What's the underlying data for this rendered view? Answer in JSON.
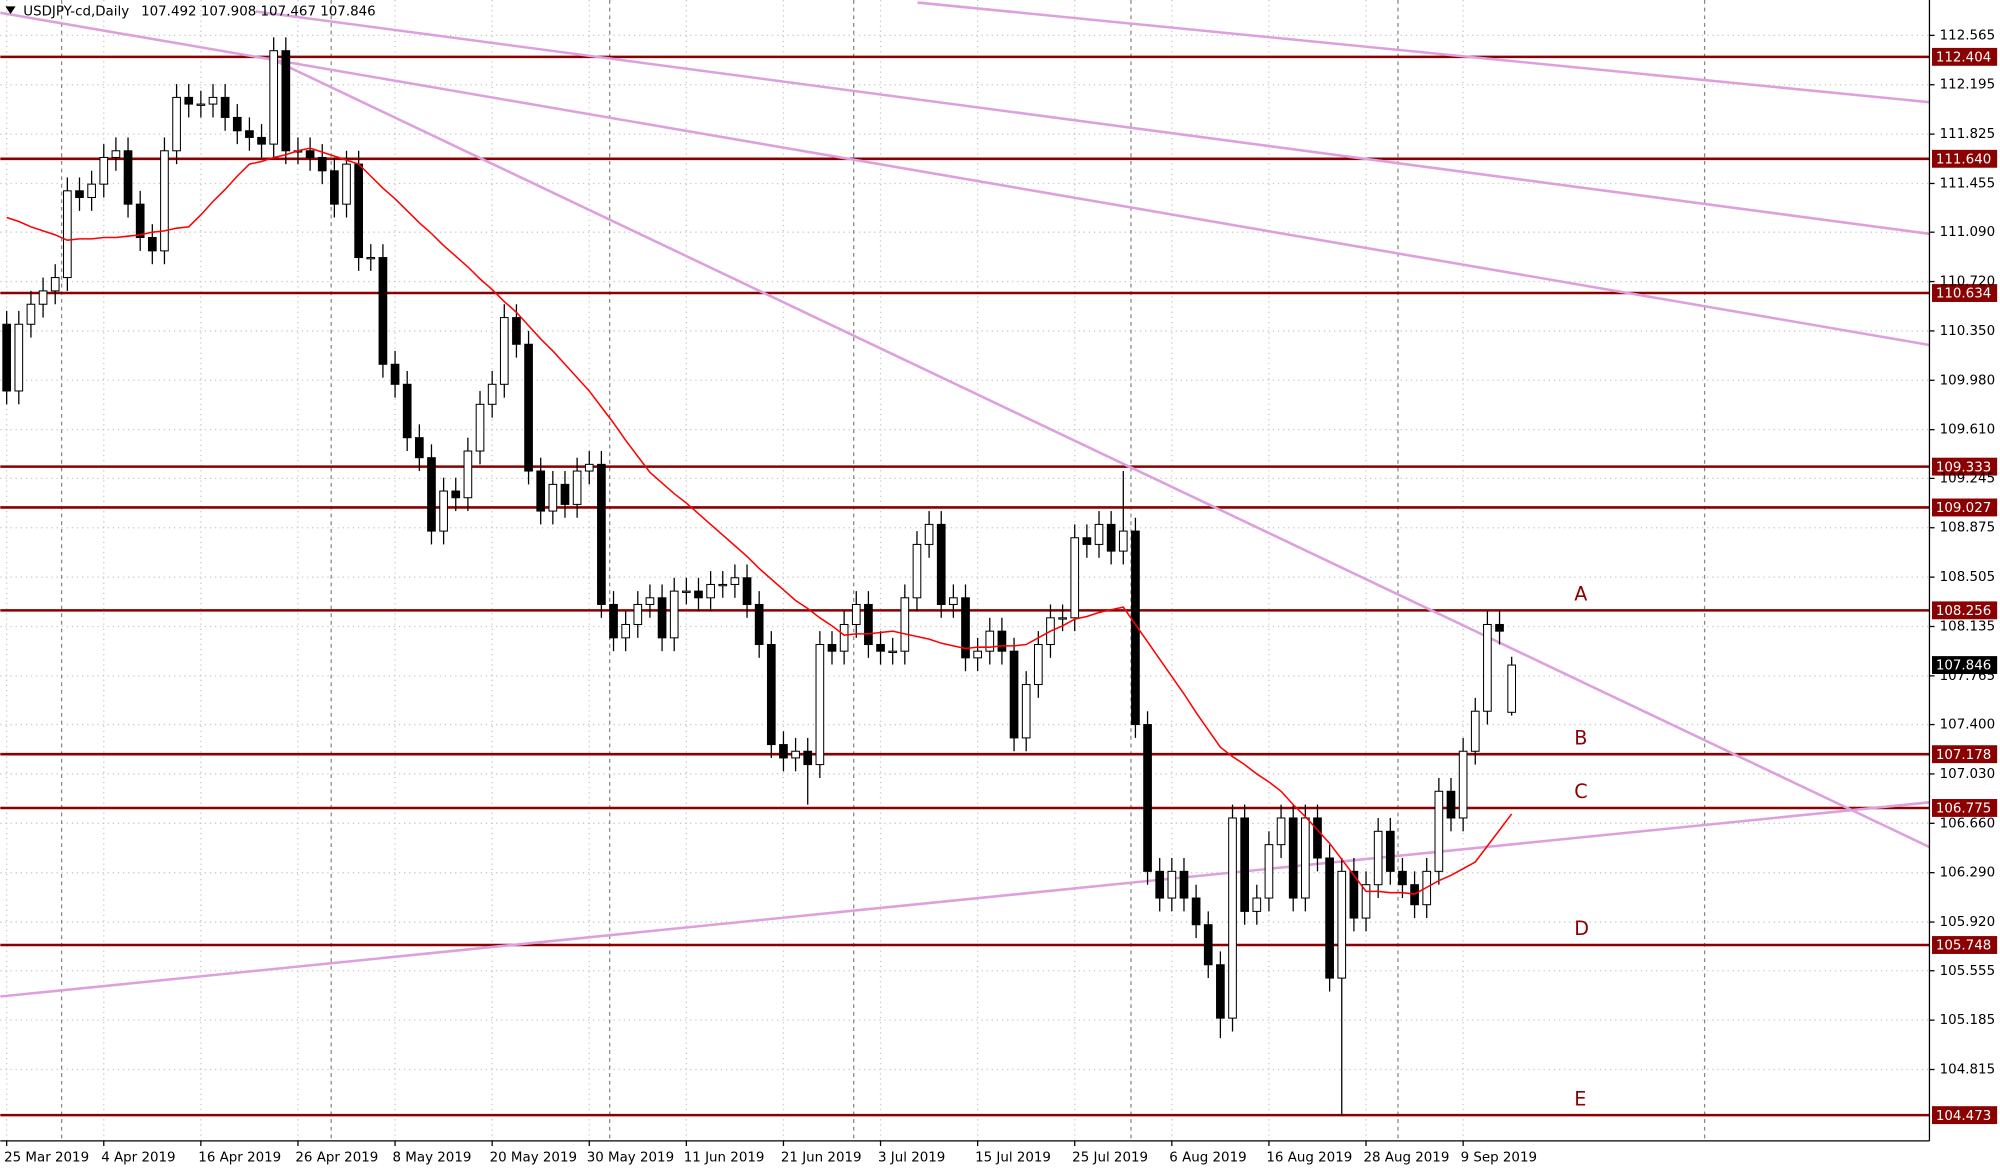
{
  "chart_data": {
    "type": "candlestick",
    "symbol": "USDJPY-cd,Daily",
    "categories": [
      "25 Mar 2019",
      null,
      null,
      null,
      null,
      null,
      null,
      null,
      "4 Apr 2019",
      null,
      null,
      null,
      null,
      null,
      null,
      null,
      "16 Apr 2019",
      null,
      null,
      null,
      null,
      null,
      null,
      null,
      "26 Apr 2019",
      null,
      null,
      null,
      null,
      null,
      null,
      null,
      "8 May 2019",
      null,
      null,
      null,
      null,
      null,
      null,
      null,
      "20 May 2019",
      null,
      null,
      null,
      null,
      null,
      null,
      null,
      "30 May 2019",
      null,
      null,
      null,
      null,
      null,
      null,
      null,
      "11 Jun 2019",
      null,
      null,
      null,
      null,
      null,
      null,
      null,
      "21 Jun 2019",
      null,
      null,
      null,
      null,
      null,
      null,
      null,
      "3 Jul 2019",
      null,
      null,
      null,
      null,
      null,
      null,
      null,
      "15 Jul 2019",
      null,
      null,
      null,
      null,
      null,
      null,
      null,
      "25 Jul 2019",
      null,
      null,
      null,
      null,
      null,
      null,
      null,
      "6 Aug 2019",
      null,
      null,
      null,
      null,
      null,
      null,
      null,
      "16 Aug 2019",
      null,
      null,
      null,
      null,
      null,
      null,
      null,
      "28 Aug 2019",
      null,
      null,
      null,
      null,
      null,
      null,
      null,
      "9 Sep 2019",
      null,
      null,
      null,
      null
    ],
    "open": [
      110.4,
      109.9,
      110.4,
      110.55,
      110.65,
      110.75,
      111.4,
      111.35,
      111.45,
      111.65,
      111.7,
      111.3,
      111.05,
      110.95,
      111.7,
      112.1,
      112.05,
      112.05,
      112.1,
      111.95,
      111.85,
      111.8,
      111.75,
      112.45,
      111.7,
      111.7,
      111.65,
      111.55,
      111.3,
      111.6,
      110.9,
      110.9,
      110.1,
      109.95,
      109.55,
      109.4,
      108.85,
      109.15,
      109.1,
      109.45,
      109.8,
      109.95,
      110.45,
      110.25,
      109.3,
      109.0,
      109.2,
      109.05,
      109.3,
      109.35,
      108.3,
      108.05,
      108.15,
      108.3,
      108.35,
      108.05,
      108.4,
      108.4,
      108.35,
      108.45,
      108.45,
      108.5,
      108.3,
      108.0,
      107.25,
      107.15,
      107.2,
      107.1,
      108.0,
      107.95,
      108.15,
      108.3,
      108.0,
      107.95,
      107.95,
      108.35,
      108.75,
      108.9,
      108.3,
      108.35,
      107.9,
      107.95,
      108.1,
      107.95,
      107.3,
      107.7,
      108.0,
      108.2,
      108.2,
      108.8,
      108.75,
      108.9,
      108.7,
      108.85,
      107.4,
      106.3,
      106.1,
      106.3,
      106.1,
      105.9,
      105.6,
      105.2,
      106.7,
      106.0,
      106.1,
      106.5,
      106.7,
      106.1,
      106.7,
      106.4,
      105.5,
      106.3,
      105.95,
      106.2,
      106.6,
      106.3,
      106.2,
      106.05,
      106.3,
      106.9,
      106.7,
      107.2,
      107.5,
      108.15,
      107.492
    ],
    "high": [
      110.5,
      110.5,
      110.65,
      110.75,
      110.85,
      111.5,
      111.5,
      111.55,
      111.75,
      111.8,
      111.8,
      111.4,
      111.15,
      111.8,
      112.2,
      112.2,
      112.15,
      112.2,
      112.2,
      112.05,
      111.95,
      111.9,
      112.55,
      112.55,
      111.8,
      111.8,
      111.75,
      111.65,
      111.7,
      111.7,
      111.0,
      111.0,
      110.2,
      110.05,
      109.65,
      109.5,
      109.25,
      109.25,
      109.55,
      109.9,
      110.05,
      110.55,
      110.55,
      110.35,
      109.4,
      109.3,
      109.3,
      109.4,
      109.45,
      109.45,
      108.4,
      108.25,
      108.4,
      108.45,
      108.45,
      108.5,
      108.5,
      108.5,
      108.55,
      108.55,
      108.6,
      108.6,
      108.4,
      108.1,
      107.35,
      107.3,
      107.3,
      108.1,
      108.1,
      108.25,
      108.4,
      108.4,
      108.1,
      108.05,
      108.45,
      108.85,
      109.0,
      109.0,
      108.45,
      108.45,
      108.05,
      108.2,
      108.2,
      108.05,
      107.8,
      108.1,
      108.3,
      108.3,
      108.9,
      108.9,
      109.0,
      109.0,
      109.3,
      108.95,
      107.5,
      106.4,
      106.4,
      106.4,
      106.2,
      106.0,
      105.7,
      106.8,
      106.8,
      106.2,
      106.6,
      106.8,
      106.8,
      106.8,
      106.8,
      106.5,
      106.4,
      106.4,
      106.3,
      106.7,
      106.7,
      106.4,
      106.3,
      106.4,
      107.0,
      107.0,
      107.3,
      107.6,
      108.25,
      108.25,
      107.908
    ],
    "low": [
      109.8,
      109.8,
      110.3,
      110.45,
      110.55,
      110.65,
      111.25,
      111.25,
      111.35,
      111.55,
      111.2,
      110.95,
      110.85,
      110.85,
      111.6,
      111.95,
      111.95,
      111.95,
      111.85,
      111.75,
      111.7,
      111.65,
      111.65,
      111.6,
      111.6,
      111.55,
      111.45,
      111.2,
      111.2,
      110.8,
      110.8,
      110.0,
      109.85,
      109.45,
      109.3,
      108.75,
      108.75,
      109.0,
      109.0,
      109.35,
      109.7,
      109.85,
      110.15,
      109.2,
      108.9,
      108.9,
      108.95,
      108.95,
      109.2,
      108.2,
      107.95,
      107.95,
      108.05,
      108.2,
      107.95,
      107.95,
      108.3,
      108.25,
      108.25,
      108.35,
      108.35,
      108.2,
      107.9,
      107.15,
      107.05,
      107.05,
      106.8,
      107.0,
      107.85,
      107.85,
      108.05,
      107.9,
      107.85,
      107.85,
      107.85,
      108.25,
      108.65,
      108.2,
      108.2,
      107.8,
      107.8,
      107.85,
      107.85,
      107.2,
      107.2,
      107.6,
      107.9,
      108.1,
      108.1,
      108.65,
      108.65,
      108.6,
      108.6,
      107.3,
      106.2,
      106.0,
      106.0,
      106.0,
      105.8,
      105.5,
      105.05,
      105.1,
      105.9,
      105.9,
      106.0,
      106.4,
      106.0,
      106.0,
      106.3,
      105.4,
      104.47,
      105.85,
      105.85,
      106.1,
      106.2,
      106.1,
      105.95,
      105.95,
      106.2,
      106.6,
      106.6,
      107.1,
      107.4,
      108.0,
      107.467
    ],
    "close": [
      109.9,
      110.4,
      110.55,
      110.65,
      110.75,
      111.4,
      111.35,
      111.45,
      111.65,
      111.7,
      111.3,
      111.05,
      110.95,
      111.7,
      112.1,
      112.05,
      112.05,
      112.1,
      111.95,
      111.85,
      111.8,
      111.75,
      112.45,
      111.7,
      111.7,
      111.65,
      111.55,
      111.3,
      111.6,
      110.9,
      110.9,
      110.1,
      109.95,
      109.55,
      109.4,
      108.85,
      109.15,
      109.1,
      109.45,
      109.8,
      109.95,
      110.45,
      110.25,
      109.3,
      109.0,
      109.2,
      109.05,
      109.3,
      109.35,
      108.3,
      108.05,
      108.15,
      108.3,
      108.35,
      108.05,
      108.4,
      108.4,
      108.35,
      108.45,
      108.45,
      108.5,
      108.3,
      108.0,
      107.25,
      107.15,
      107.2,
      107.1,
      108.0,
      107.95,
      108.15,
      108.3,
      108.0,
      107.95,
      107.95,
      108.35,
      108.75,
      108.9,
      108.3,
      108.35,
      107.9,
      107.95,
      108.1,
      107.95,
      107.3,
      107.7,
      108.0,
      108.2,
      108.2,
      108.8,
      108.75,
      108.9,
      108.7,
      108.85,
      107.4,
      106.3,
      106.1,
      106.3,
      106.1,
      105.9,
      105.6,
      105.2,
      106.7,
      106.0,
      106.1,
      106.5,
      106.7,
      106.1,
      106.7,
      106.4,
      105.5,
      106.3,
      105.95,
      106.2,
      106.6,
      106.3,
      106.2,
      106.05,
      106.3,
      106.9,
      106.7,
      107.2,
      107.5,
      108.15,
      108.1,
      107.846
    ],
    "ma": [
      111.2,
      111.17,
      111.13,
      111.1,
      111.07,
      111.03,
      111.04,
      111.04,
      111.05,
      111.05,
      111.06,
      111.07,
      111.09,
      111.1,
      111.12,
      111.13,
      111.22,
      111.32,
      111.41,
      111.51,
      111.6,
      111.62,
      111.65,
      111.67,
      111.7,
      111.72,
      111.69,
      111.66,
      111.63,
      111.6,
      111.51,
      111.42,
      111.34,
      111.25,
      111.16,
      111.08,
      110.99,
      110.91,
      110.83,
      110.74,
      110.66,
      110.57,
      110.49,
      110.39,
      110.29,
      110.2,
      110.1,
      110.0,
      109.9,
      109.78,
      109.66,
      109.53,
      109.41,
      109.29,
      109.21,
      109.13,
      109.06,
      108.98,
      108.9,
      108.82,
      108.74,
      108.66,
      108.57,
      108.49,
      108.41,
      108.33,
      108.27,
      108.2,
      108.14,
      108.07,
      108.08,
      108.08,
      108.09,
      108.1,
      108.08,
      108.06,
      108.04,
      108.01,
      107.99,
      107.97,
      107.98,
      107.98,
      107.99,
      107.99,
      108.0,
      108.05,
      108.1,
      108.14,
      108.19,
      108.21,
      108.24,
      108.26,
      108.28,
      108.15,
      108.02,
      107.89,
      107.76,
      107.63,
      107.49,
      107.36,
      107.23,
      107.16,
      107.1,
      107.03,
      106.97,
      106.9,
      106.8,
      106.71,
      106.61,
      106.51,
      106.39,
      106.27,
      106.15,
      106.15,
      106.14,
      106.14,
      106.13,
      106.18,
      106.23,
      106.27,
      106.32,
      106.37,
      106.49,
      106.61,
      106.73
    ],
    "ma_color": "#ff0000",
    "level_color": "#8b0000",
    "trendline_color": "#dda0dd",
    "ylim": [
      104.28,
      112.83
    ],
    "yticks": [
      112.565,
      112.195,
      111.825,
      111.455,
      {
        "value": 111.09,
        "label": "111.090"
      },
      {
        "value": 110.72,
        "label": "110.720"
      },
      {
        "value": 110.35,
        "label": "110.350"
      },
      {
        "value": 109.98,
        "label": "109.980"
      },
      {
        "value": 109.61,
        "label": "109.610"
      },
      109.245,
      108.875,
      108.505,
      108.135,
      107.765,
      {
        "value": 107.4,
        "label": "107.400"
      },
      {
        "value": 107.03,
        "label": "107.030"
      },
      {
        "value": 106.66,
        "label": "106.660"
      },
      {
        "value": 106.29,
        "label": "106.290"
      },
      {
        "value": 105.92,
        "label": "105.920"
      },
      105.555,
      105.185,
      104.815
    ],
    "levels": [
      {
        "value": 112.404
      },
      {
        "value": 111.64,
        "label": "111.640"
      },
      {
        "value": 110.634
      },
      {
        "value": 109.333
      },
      {
        "value": 109.027
      },
      {
        "value": 108.256,
        "tag": "A"
      },
      {
        "value": 107.178,
        "tag": "B"
      },
      {
        "value": 106.775,
        "tag": "C"
      },
      {
        "value": 105.748,
        "tag": "D"
      },
      {
        "value": 104.473,
        "tag": "E"
      }
    ],
    "grid": true
  }
}
